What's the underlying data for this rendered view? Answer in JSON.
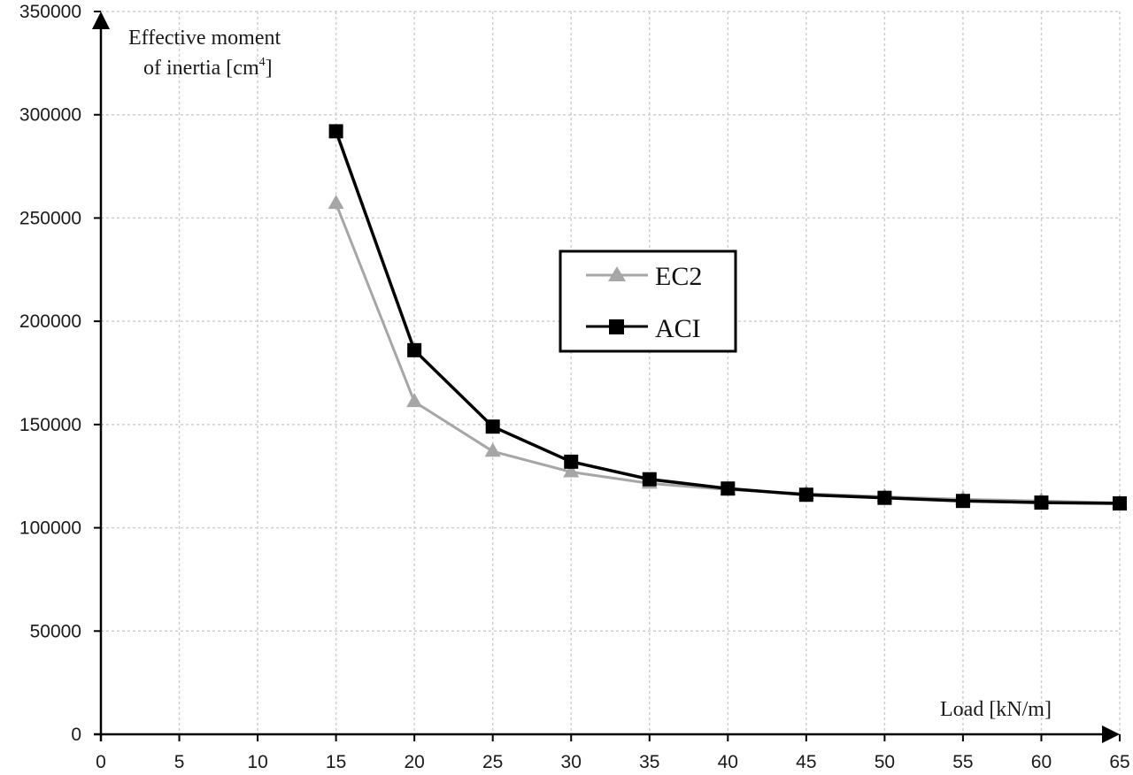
{
  "chart_data": {
    "type": "line",
    "title": "",
    "xlabel": "Load [kN/m]",
    "ylabel_line1": "Effective moment",
    "ylabel_line2": "of inertia  [cm",
    "ylabel_sup": "4",
    "ylabel_end": "]",
    "xlim": [
      0,
      65
    ],
    "ylim": [
      0,
      350000
    ],
    "x_ticks": [
      0,
      5,
      10,
      15,
      20,
      25,
      30,
      35,
      40,
      45,
      50,
      55,
      60,
      65
    ],
    "y_ticks": [
      0,
      50000,
      100000,
      150000,
      200000,
      250000,
      300000,
      350000
    ],
    "grid": true,
    "legend_position": "center (inside plot, upper-middle)",
    "x": [
      15,
      20,
      25,
      30,
      35,
      40,
      45,
      50,
      55,
      60,
      65
    ],
    "series": [
      {
        "name": "EC2",
        "marker": "triangle",
        "color": "#a6a6a6",
        "values": [
          257000,
          161000,
          137000,
          127000,
          121500,
          118500,
          116500,
          115000,
          113800,
          113000,
          112000
        ]
      },
      {
        "name": "ACI",
        "marker": "square",
        "color": "#000000",
        "values": [
          292000,
          186000,
          149000,
          132000,
          123500,
          119000,
          116000,
          114500,
          113000,
          112200,
          111800
        ]
      }
    ]
  },
  "legend": {
    "items": [
      {
        "label": "EC2"
      },
      {
        "label": "ACI"
      }
    ]
  }
}
